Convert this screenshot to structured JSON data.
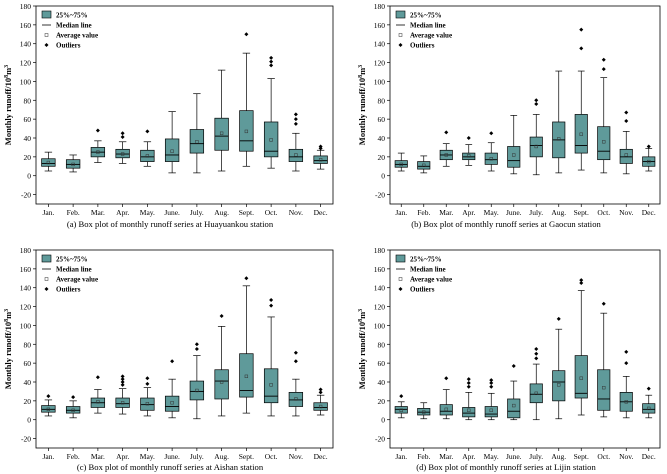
{
  "figure": {
    "y_label": "Monthly runoff/10^8m^3",
    "legend": {
      "box": "25%~75%",
      "median": "Median line",
      "mean": "Average value",
      "outliers": "Outliers"
    },
    "colors": {
      "box_fill": "#5f9a9a",
      "stroke": "#000000"
    }
  },
  "chart_data": [
    {
      "type": "box",
      "caption": "(a) Box plot of monthly runoff series at Huayuankou station",
      "ylabel": "Monthly runoff/10^8m^3",
      "ylim": [
        -30,
        180
      ],
      "yticks": [
        -20,
        0,
        20,
        40,
        60,
        80,
        100,
        120,
        140,
        160,
        180
      ],
      "categories": [
        "Jan.",
        "Feb.",
        "Mar.",
        "Apr.",
        "May.",
        "June.",
        "July.",
        "Aug.",
        "Sept.",
        "Oct.",
        "Nov.",
        "Dec."
      ],
      "boxes": [
        {
          "min": 5,
          "q1": 10,
          "median": 13,
          "q3": 18,
          "max": 25,
          "mean": 14,
          "outliers": []
        },
        {
          "min": 4,
          "q1": 8,
          "median": 12,
          "q3": 17,
          "max": 22,
          "mean": 12,
          "outliers": []
        },
        {
          "min": 14,
          "q1": 20,
          "median": 25,
          "q3": 30,
          "max": 37,
          "mean": 25,
          "outliers": [
            48
          ]
        },
        {
          "min": 13,
          "q1": 19,
          "median": 23,
          "q3": 28,
          "max": 36,
          "mean": 23,
          "outliers": [
            41,
            45
          ]
        },
        {
          "min": 10,
          "q1": 15,
          "median": 20,
          "q3": 27,
          "max": 36,
          "mean": 21,
          "outliers": [
            47
          ]
        },
        {
          "min": 3,
          "q1": 15,
          "median": 22,
          "q3": 39,
          "max": 68,
          "mean": 26,
          "outliers": []
        },
        {
          "min": 3,
          "q1": 24,
          "median": 34,
          "q3": 49,
          "max": 87,
          "mean": 36,
          "outliers": []
        },
        {
          "min": 5,
          "q1": 27,
          "median": 42,
          "q3": 61,
          "max": 112,
          "mean": 45,
          "outliers": []
        },
        {
          "min": 10,
          "q1": 26,
          "median": 37,
          "q3": 69,
          "max": 130,
          "mean": 47,
          "outliers": [
            150
          ]
        },
        {
          "min": 8,
          "q1": 20,
          "median": 26,
          "q3": 57,
          "max": 103,
          "mean": 38,
          "outliers": [
            117,
            121,
            125
          ]
        },
        {
          "min": 5,
          "q1": 15,
          "median": 20,
          "q3": 28,
          "max": 45,
          "mean": 22,
          "outliers": [
            55,
            60,
            65
          ]
        },
        {
          "min": 7,
          "q1": 13,
          "median": 16,
          "q3": 21,
          "max": 27,
          "mean": 17,
          "outliers": [
            29,
            31
          ]
        }
      ]
    },
    {
      "type": "box",
      "caption": "(b) Box plot of monthly runoff series at Gaocun station",
      "ylabel": "Monthly runoff/10^8m^3",
      "ylim": [
        -30,
        180
      ],
      "yticks": [
        -20,
        0,
        20,
        40,
        60,
        80,
        100,
        120,
        140,
        160,
        180
      ],
      "categories": [
        "Jan.",
        "Feb.",
        "Mar.",
        "Apr.",
        "May.",
        "June.",
        "July.",
        "Aug.",
        "Sept.",
        "Oct.",
        "Nov.",
        "Dec."
      ],
      "boxes": [
        {
          "min": 5,
          "q1": 9,
          "median": 12,
          "q3": 16,
          "max": 24,
          "mean": 12,
          "outliers": []
        },
        {
          "min": 3,
          "q1": 7,
          "median": 10,
          "q3": 15,
          "max": 21,
          "mean": 11,
          "outliers": []
        },
        {
          "min": 10,
          "q1": 17,
          "median": 22,
          "q3": 27,
          "max": 34,
          "mean": 22,
          "outliers": [
            46
          ]
        },
        {
          "min": 11,
          "q1": 17,
          "median": 20,
          "q3": 24,
          "max": 33,
          "mean": 21,
          "outliers": [
            40
          ]
        },
        {
          "min": 5,
          "q1": 12,
          "median": 17,
          "q3": 24,
          "max": 35,
          "mean": 18,
          "outliers": [
            45
          ]
        },
        {
          "min": 2,
          "q1": 9,
          "median": 16,
          "q3": 31,
          "max": 64,
          "mean": 22,
          "outliers": []
        },
        {
          "min": 1,
          "q1": 20,
          "median": 32,
          "q3": 41,
          "max": 65,
          "mean": 31,
          "outliers": [
            76,
            80
          ]
        },
        {
          "min": 3,
          "q1": 19,
          "median": 38,
          "q3": 57,
          "max": 111,
          "mean": 39,
          "outliers": []
        },
        {
          "min": 6,
          "q1": 24,
          "median": 32,
          "q3": 65,
          "max": 111,
          "mean": 44,
          "outliers": [
            135,
            155
          ]
        },
        {
          "min": 3,
          "q1": 17,
          "median": 26,
          "q3": 52,
          "max": 104,
          "mean": 36,
          "outliers": [
            113,
            123
          ]
        },
        {
          "min": 2,
          "q1": 13,
          "median": 20,
          "q3": 28,
          "max": 47,
          "mean": 22,
          "outliers": [
            58,
            67
          ]
        },
        {
          "min": 5,
          "q1": 10,
          "median": 15,
          "q3": 20,
          "max": 29,
          "mean": 15,
          "outliers": [
            31
          ]
        }
      ]
    },
    {
      "type": "box",
      "caption": "(c) Box plot of monthly runoff series at Aishan station",
      "ylabel": "Monthly runoff/10^8m^3",
      "ylim": [
        -30,
        180
      ],
      "yticks": [
        -20,
        0,
        20,
        40,
        60,
        80,
        100,
        120,
        140,
        160,
        180
      ],
      "categories": [
        "Jan.",
        "Feb.",
        "Mar.",
        "Apr.",
        "May.",
        "June.",
        "July.",
        "Aug.",
        "Sept.",
        "Oct.",
        "Nov.",
        "Dec."
      ],
      "boxes": [
        {
          "min": 4,
          "q1": 8,
          "median": 11,
          "q3": 15,
          "max": 21,
          "mean": 11,
          "outliers": [
            25
          ]
        },
        {
          "min": 2,
          "q1": 7,
          "median": 10,
          "q3": 14,
          "max": 20,
          "mean": 10,
          "outliers": [
            24
          ]
        },
        {
          "min": 7,
          "q1": 13,
          "median": 18,
          "q3": 23,
          "max": 32,
          "mean": 19,
          "outliers": [
            45
          ]
        },
        {
          "min": 6,
          "q1": 13,
          "median": 17,
          "q3": 23,
          "max": 33,
          "mean": 18,
          "outliers": [
            37,
            40,
            43,
            46
          ]
        },
        {
          "min": 4,
          "q1": 10,
          "median": 16,
          "q3": 23,
          "max": 34,
          "mean": 17,
          "outliers": [
            38,
            44
          ]
        },
        {
          "min": 2,
          "q1": 9,
          "median": 14,
          "q3": 25,
          "max": 43,
          "mean": 18,
          "outliers": [
            62
          ]
        },
        {
          "min": 1,
          "q1": 21,
          "median": 30,
          "q3": 41,
          "max": 68,
          "mean": 31,
          "outliers": [
            75,
            80
          ]
        },
        {
          "min": 4,
          "q1": 22,
          "median": 41,
          "q3": 53,
          "max": 99,
          "mean": 40,
          "outliers": [
            110
          ]
        },
        {
          "min": 7,
          "q1": 24,
          "median": 31,
          "q3": 70,
          "max": 142,
          "mean": 46,
          "outliers": [
            150
          ]
        },
        {
          "min": 4,
          "q1": 18,
          "median": 25,
          "q3": 54,
          "max": 109,
          "mean": 37,
          "outliers": [
            121,
            127
          ]
        },
        {
          "min": 4,
          "q1": 14,
          "median": 21,
          "q3": 29,
          "max": 43,
          "mean": 22,
          "outliers": [
            62,
            71
          ]
        },
        {
          "min": 5,
          "q1": 10,
          "median": 13,
          "q3": 18,
          "max": 26,
          "mean": 14,
          "outliers": [
            29,
            32
          ]
        }
      ]
    },
    {
      "type": "box",
      "caption": "(d) Box plot of monthly runoff series at Lijin station",
      "ylabel": "Monthly runoff/10^8m^3",
      "ylim": [
        -30,
        180
      ],
      "yticks": [
        -20,
        0,
        20,
        40,
        60,
        80,
        100,
        120,
        140,
        160,
        180
      ],
      "categories": [
        "Jan.",
        "Feb.",
        "Mar.",
        "Apr.",
        "May.",
        "June.",
        "July.",
        "Aug.",
        "Sept.",
        "Oct.",
        "Nov.",
        "Dec."
      ],
      "boxes": [
        {
          "min": 2,
          "q1": 7,
          "median": 11,
          "q3": 14,
          "max": 19,
          "mean": 10,
          "outliers": [
            25
          ]
        },
        {
          "min": 1,
          "q1": 5,
          "median": 8,
          "q3": 12,
          "max": 18,
          "mean": 8,
          "outliers": []
        },
        {
          "min": 1,
          "q1": 5,
          "median": 9,
          "q3": 16,
          "max": 32,
          "mean": 11,
          "outliers": [
            44
          ]
        },
        {
          "min": 0,
          "q1": 3,
          "median": 7,
          "q3": 13,
          "max": 29,
          "mean": 10,
          "outliers": [
            35,
            39,
            43
          ]
        },
        {
          "min": 0,
          "q1": 3,
          "median": 6,
          "q3": 14,
          "max": 28,
          "mean": 10,
          "outliers": [
            35,
            39,
            42
          ]
        },
        {
          "min": 0,
          "q1": 2,
          "median": 9,
          "q3": 22,
          "max": 41,
          "mean": 15,
          "outliers": [
            57
          ]
        },
        {
          "min": 0,
          "q1": 18,
          "median": 27,
          "q3": 38,
          "max": 59,
          "mean": 28,
          "outliers": [
            65,
            70,
            75
          ]
        },
        {
          "min": 1,
          "q1": 20,
          "median": 40,
          "q3": 52,
          "max": 96,
          "mean": 37,
          "outliers": [
            107
          ]
        },
        {
          "min": 5,
          "q1": 23,
          "median": 28,
          "q3": 68,
          "max": 137,
          "mean": 44,
          "outliers": [
            145,
            148
          ]
        },
        {
          "min": 3,
          "q1": 10,
          "median": 22,
          "q3": 53,
          "max": 113,
          "mean": 34,
          "outliers": [
            123
          ]
        },
        {
          "min": 2,
          "q1": 9,
          "median": 19,
          "q3": 29,
          "max": 46,
          "mean": 19,
          "outliers": [
            60,
            72
          ]
        },
        {
          "min": 2,
          "q1": 7,
          "median": 11,
          "q3": 17,
          "max": 26,
          "mean": 12,
          "outliers": [
            33
          ]
        }
      ]
    }
  ]
}
